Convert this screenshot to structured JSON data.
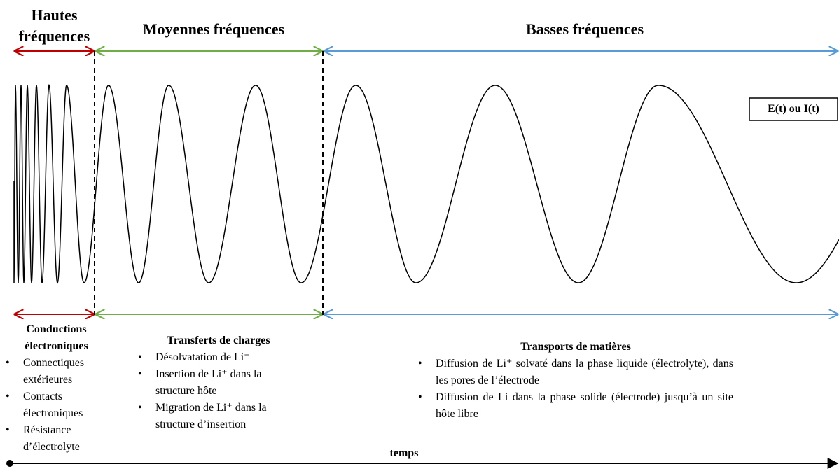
{
  "header": {
    "high": "Hautes fréquences",
    "mid": "Moyennes fréquences",
    "low": "Basses fréquences"
  },
  "signal_label": "E(t) ou I(t)",
  "sections": [
    {
      "title": "Conductions électroniques",
      "items": [
        "Connectiques extérieures",
        "Contacts électroniques",
        "Résistance d’électrolyte"
      ]
    },
    {
      "title": "Transferts de charges",
      "items": [
        "Désolvatation de Li⁺",
        "Insertion de Li⁺ dans la structure hôte",
        "Migration de Li⁺ dans la structure d’insertion"
      ]
    },
    {
      "title": "Transports de matières",
      "items": [
        "Diffusion de Li⁺ solvaté dans la phase liquide (électrolyte), dans les pores de l’électrode",
        "Diffusion de Li dans la phase solide (électrode) jusqu’à un site hôte libre"
      ]
    }
  ],
  "axis_label": "temps"
}
